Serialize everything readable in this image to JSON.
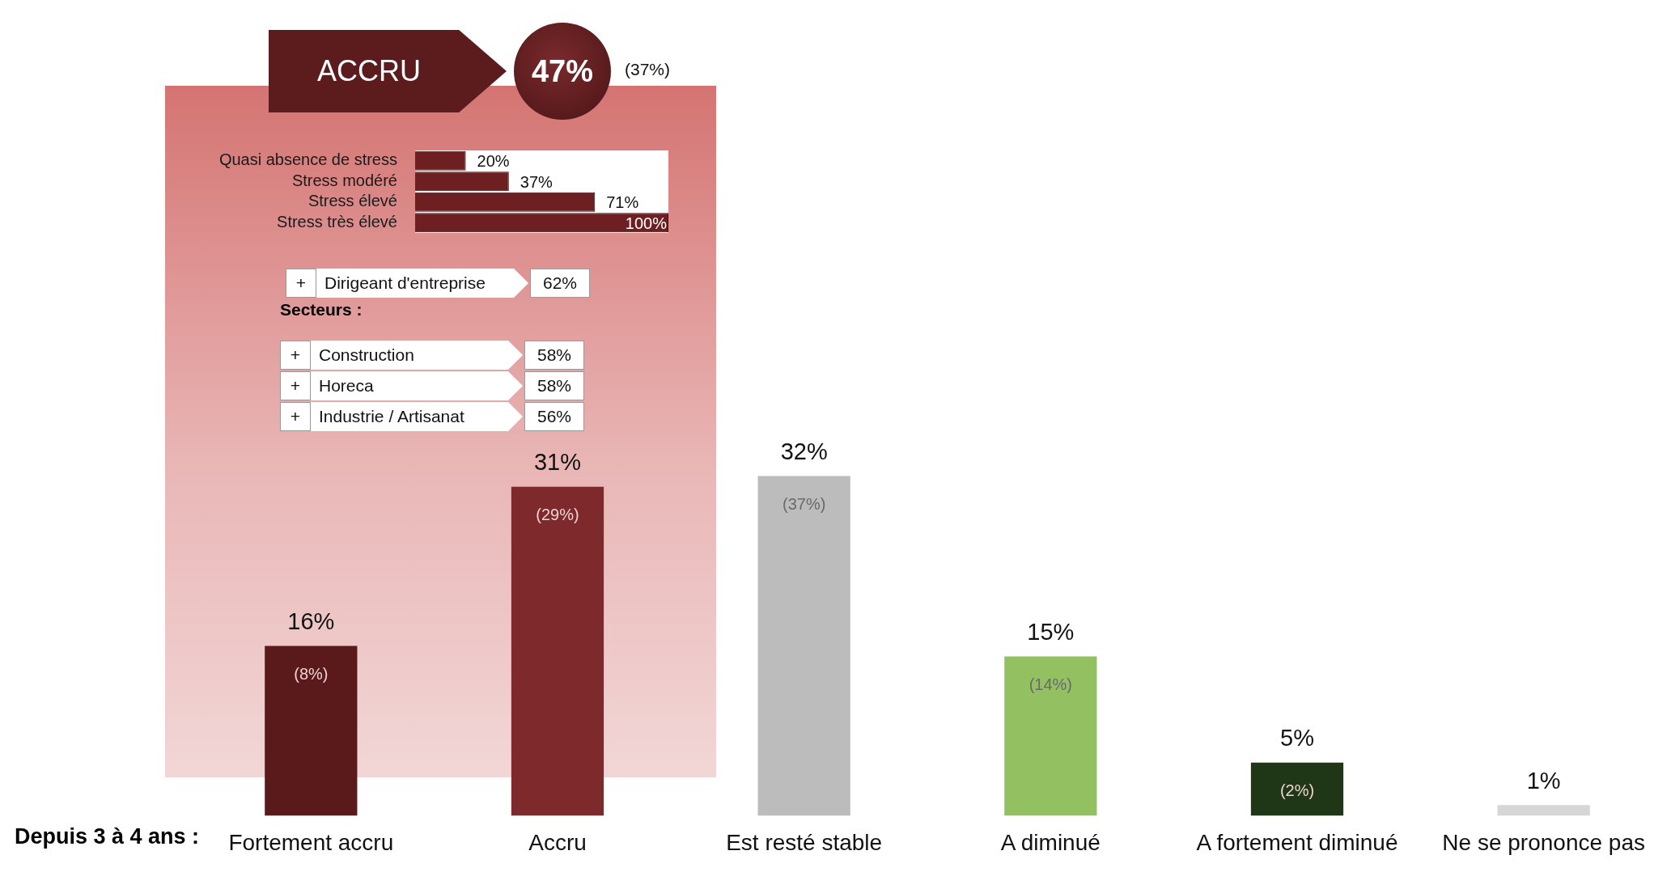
{
  "chart_data": [
    {
      "type": "bar",
      "xlabel": "Depuis 3 à 4 ans :",
      "categories": [
        "Fortement accru",
        "Accru",
        "Est resté stable",
        "A diminué",
        "A fortement diminué",
        "Ne se prononce pas"
      ],
      "values": [
        16,
        31,
        32,
        15,
        5,
        1
      ],
      "colors": [
        "#5a1a1c",
        "#7e2a2c",
        "#bcbcbc",
        "#93c162",
        "#1f3716",
        "#d6d6d6"
      ],
      "value_labels": [
        "16%",
        "31%",
        "32%",
        "15%",
        "5%",
        "1%"
      ],
      "annotations": [
        "(8%)",
        "(29%)",
        "(37%)",
        "(14%)",
        "(2%)"
      ],
      "legend": false,
      "grid": false
    },
    {
      "type": "bar",
      "orientation": "horizontal",
      "title": "ACCRU",
      "annotations": [
        "47%",
        "(37%)"
      ],
      "categories": [
        "Quasi absence de stress",
        "Stress modéré",
        "Stress élevé",
        "Stress très élevé"
      ],
      "values": [
        20,
        37,
        71,
        100
      ],
      "color": "#6e1f22",
      "value_labels": [
        "20%",
        "37%",
        "71%",
        "100%"
      ],
      "legend": false,
      "grid": false
    },
    {
      "type": "other",
      "subtitle": "Secteurs :",
      "categories": [
        "Dirigeant d'entreprise",
        "Construction",
        "Horeca",
        "Industrie / Artisanat"
      ],
      "value_labels": [
        "62%",
        "58%",
        "58%",
        "56%"
      ],
      "annotations": [
        "+",
        "+",
        "+",
        "+"
      ]
    }
  ]
}
